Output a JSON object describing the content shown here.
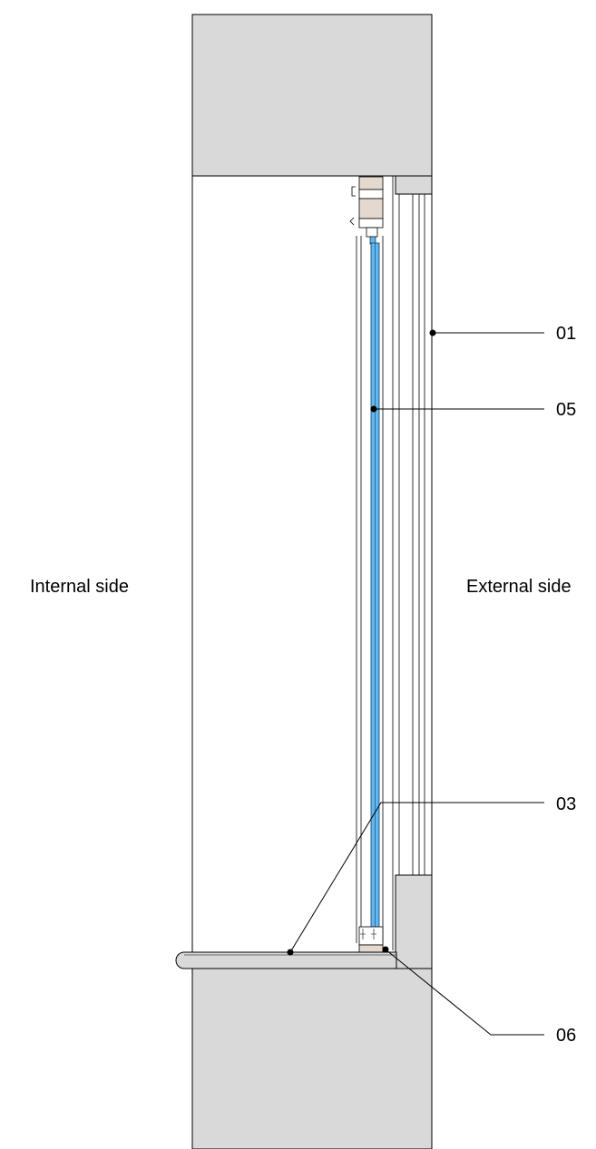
{
  "labels": {
    "internal_side": "Internal side",
    "external_side": "External side"
  },
  "callouts": {
    "c01": "01",
    "c05": "05",
    "c03": "03",
    "c06": "06"
  },
  "colors": {
    "wall": "#d9d9d9",
    "glass": "#5fb8f0",
    "profile": "#e5d9cf",
    "line": "#000000"
  }
}
